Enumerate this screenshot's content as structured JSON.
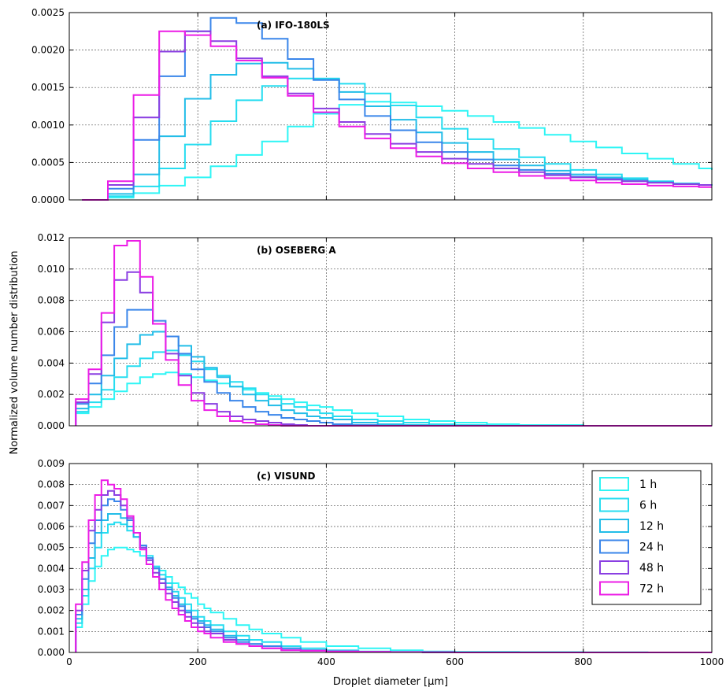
{
  "chart_data": [
    {
      "type": "line",
      "title": "(a) IFO-180LS",
      "xlim": [
        0,
        1000
      ],
      "ylim": [
        0,
        0.0025
      ],
      "xticks": [
        0,
        200,
        400,
        600,
        800,
        1000
      ],
      "xtick_labels": [
        "",
        "",
        "",
        "",
        "",
        ""
      ],
      "yticks": [
        0,
        0.0005,
        0.001,
        0.0015,
        0.002,
        0.0025
      ],
      "ytick_labels": [
        "0.0000",
        "0.0005",
        "0.0010",
        "0.0015",
        "0.0020",
        "0.0025"
      ],
      "grid": true,
      "x": [
        20,
        60,
        100,
        140,
        180,
        220,
        260,
        300,
        340,
        380,
        420,
        460,
        500,
        540,
        580,
        620,
        660,
        700,
        740,
        780,
        820,
        860,
        900,
        940,
        980,
        1000
      ],
      "series": [
        {
          "name": "1 h",
          "values": [
            0,
            3e-05,
            9e-05,
            0.00019,
            0.0003,
            0.00045,
            0.0006,
            0.00078,
            0.00098,
            0.00115,
            0.00127,
            0.00131,
            0.0013,
            0.00125,
            0.00119,
            0.00112,
            0.00104,
            0.00096,
            0.00087,
            0.00078,
            0.0007,
            0.00062,
            0.00055,
            0.00048,
            0.00042,
            0.0004
          ]
        },
        {
          "name": "6 h",
          "values": [
            0,
            5e-05,
            0.00018,
            0.00042,
            0.00074,
            0.00105,
            0.00133,
            0.00152,
            0.00162,
            0.00162,
            0.00155,
            0.00142,
            0.00126,
            0.0011,
            0.00095,
            0.00081,
            0.00068,
            0.00057,
            0.00048,
            0.0004,
            0.00034,
            0.00029,
            0.00025,
            0.00022,
            0.0002,
            0.00019
          ]
        },
        {
          "name": "12 h",
          "values": [
            0,
            8e-05,
            0.00034,
            0.00085,
            0.00135,
            0.00167,
            0.00182,
            0.00183,
            0.00175,
            0.00161,
            0.00144,
            0.00125,
            0.00107,
            0.0009,
            0.00076,
            0.00064,
            0.00054,
            0.00046,
            0.00039,
            0.00034,
            0.0003,
            0.00027,
            0.00024,
            0.00022,
            0.0002,
            0.0002
          ]
        },
        {
          "name": "24 h",
          "values": [
            0,
            0.00015,
            0.0008,
            0.00165,
            0.00225,
            0.00243,
            0.00236,
            0.00215,
            0.00188,
            0.0016,
            0.00134,
            0.00112,
            0.00093,
            0.00077,
            0.00064,
            0.00054,
            0.00046,
            0.0004,
            0.00035,
            0.00031,
            0.00028,
            0.00025,
            0.00023,
            0.00021,
            0.0002,
            0.0002
          ]
        },
        {
          "name": "48 h",
          "values": [
            0,
            0.0002,
            0.0011,
            0.00198,
            0.00225,
            0.00212,
            0.00189,
            0.00165,
            0.00142,
            0.00122,
            0.00104,
            0.00088,
            0.00075,
            0.00064,
            0.00055,
            0.00048,
            0.00042,
            0.00037,
            0.00033,
            0.0003,
            0.00027,
            0.00025,
            0.00023,
            0.00021,
            0.0002,
            0.0002
          ]
        },
        {
          "name": "72 h",
          "values": [
            0,
            0.00025,
            0.0014,
            0.00225,
            0.0022,
            0.00205,
            0.00186,
            0.00163,
            0.00139,
            0.00117,
            0.00098,
            0.00082,
            0.00069,
            0.00058,
            0.00049,
            0.00042,
            0.00037,
            0.00032,
            0.00029,
            0.00026,
            0.00023,
            0.00021,
            0.00019,
            0.00018,
            0.00017,
            0.00017
          ]
        }
      ]
    },
    {
      "type": "line",
      "title": "(b) OSEBERG A",
      "xlim": [
        0,
        1000
      ],
      "ylim": [
        0,
        0.012
      ],
      "xticks": [
        0,
        200,
        400,
        600,
        800,
        1000
      ],
      "xtick_labels": [
        "",
        "",
        "",
        "",
        "",
        ""
      ],
      "yticks": [
        0,
        0.002,
        0.004,
        0.006,
        0.008,
        0.01,
        0.012
      ],
      "ytick_labels": [
        "0.000",
        "0.002",
        "0.004",
        "0.006",
        "0.008",
        "0.010",
        "0.012"
      ],
      "grid": true,
      "x": [
        10,
        30,
        50,
        70,
        90,
        110,
        130,
        150,
        170,
        190,
        210,
        230,
        250,
        270,
        290,
        310,
        330,
        350,
        370,
        390,
        410,
        440,
        480,
        520,
        560,
        600,
        650,
        700,
        800,
        900,
        1000
      ],
      "series": [
        {
          "name": "1 h",
          "values": [
            0.0008,
            0.0012,
            0.0017,
            0.0022,
            0.0027,
            0.0031,
            0.0033,
            0.0034,
            0.0033,
            0.0031,
            0.0029,
            0.0027,
            0.0025,
            0.0023,
            0.0021,
            0.0019,
            0.0017,
            0.0015,
            0.0013,
            0.0012,
            0.001,
            0.0008,
            0.0006,
            0.0004,
            0.0003,
            0.0002,
            0.0001,
            5e-05,
            0,
            0,
            0
          ]
        },
        {
          "name": "6 h",
          "values": [
            0.0009,
            0.0015,
            0.0023,
            0.0031,
            0.0038,
            0.0043,
            0.0047,
            0.0048,
            0.0045,
            0.0041,
            0.0036,
            0.0032,
            0.0028,
            0.0024,
            0.002,
            0.0017,
            0.0014,
            0.0012,
            0.001,
            0.0008,
            0.0006,
            0.0004,
            0.0003,
            0.0002,
            0.0001,
            5e-05,
            0,
            0,
            0,
            0,
            0
          ]
        },
        {
          "name": "12 h",
          "values": [
            0.0011,
            0.002,
            0.0032,
            0.0043,
            0.0052,
            0.0058,
            0.006,
            0.0057,
            0.0051,
            0.0044,
            0.0037,
            0.0031,
            0.0025,
            0.002,
            0.0016,
            0.0013,
            0.001,
            0.0008,
            0.0006,
            0.0005,
            0.0004,
            0.0002,
            0.0001,
            5e-05,
            0,
            0,
            0,
            0,
            0,
            0,
            0
          ]
        },
        {
          "name": "24 h",
          "values": [
            0.0014,
            0.0027,
            0.0045,
            0.0063,
            0.0074,
            0.0074,
            0.0067,
            0.0057,
            0.0046,
            0.0036,
            0.0028,
            0.0021,
            0.0016,
            0.0012,
            0.0009,
            0.0007,
            0.0005,
            0.0004,
            0.0003,
            0.0002,
            0.0001,
            5e-05,
            0,
            0,
            0,
            0,
            0,
            0,
            0,
            0,
            0
          ]
        },
        {
          "name": "48 h",
          "values": [
            0.0015,
            0.0033,
            0.0066,
            0.0093,
            0.0098,
            0.0085,
            0.0065,
            0.0046,
            0.0032,
            0.0021,
            0.0014,
            0.0009,
            0.0006,
            0.0004,
            0.0003,
            0.0002,
            0.0001,
            5e-05,
            0,
            0,
            0,
            0,
            0,
            0,
            0,
            0,
            0,
            0,
            0,
            0,
            0
          ]
        },
        {
          "name": "72 h",
          "values": [
            0.0017,
            0.0036,
            0.0072,
            0.0115,
            0.0118,
            0.0095,
            0.0065,
            0.0042,
            0.0026,
            0.0016,
            0.001,
            0.0006,
            0.0003,
            0.0002,
            0.0001,
            5e-05,
            0,
            0,
            0,
            0,
            0,
            0,
            0,
            0,
            0,
            0,
            0,
            0,
            0,
            0,
            0
          ]
        }
      ]
    },
    {
      "type": "line",
      "title": "(c) VISUND",
      "xlim": [
        0,
        1000
      ],
      "ylim": [
        0,
        0.009
      ],
      "xticks": [
        0,
        200,
        400,
        600,
        800,
        1000
      ],
      "xtick_labels": [
        "0",
        "200",
        "400",
        "600",
        "800",
        "1000"
      ],
      "yticks": [
        0,
        0.001,
        0.002,
        0.003,
        0.004,
        0.005,
        0.006,
        0.007,
        0.008,
        0.009
      ],
      "ytick_labels": [
        "0.000",
        "0.001",
        "0.002",
        "0.003",
        "0.004",
        "0.005",
        "0.006",
        "0.007",
        "0.008",
        "0.009"
      ],
      "grid": true,
      "xlabel": "Droplet diameter [μm]",
      "ylabel": "Normalized volume number distribution",
      "legend_position": "right",
      "x": [
        10,
        20,
        30,
        40,
        50,
        60,
        70,
        80,
        90,
        100,
        110,
        120,
        130,
        140,
        150,
        160,
        170,
        180,
        190,
        200,
        210,
        220,
        240,
        260,
        280,
        300,
        330,
        360,
        400,
        450,
        500,
        550,
        600,
        700,
        800,
        900,
        1000
      ],
      "series": [
        {
          "name": "1 h",
          "values": [
            0.0012,
            0.0023,
            0.0034,
            0.0041,
            0.0046,
            0.0049,
            0.005,
            0.005,
            0.0049,
            0.0048,
            0.0046,
            0.0044,
            0.0041,
            0.0039,
            0.0036,
            0.0033,
            0.0031,
            0.0028,
            0.0026,
            0.0023,
            0.0021,
            0.0019,
            0.0016,
            0.0013,
            0.0011,
            0.0009,
            0.0007,
            0.0005,
            0.0003,
            0.0002,
            0.0001,
            5e-05,
            3e-05,
            2e-05,
            1e-05,
            0,
            0
          ]
        },
        {
          "name": "6 h",
          "values": [
            0.0014,
            0.0027,
            0.004,
            0.005,
            0.0057,
            0.0061,
            0.0062,
            0.0061,
            0.0058,
            0.0055,
            0.005,
            0.0046,
            0.0041,
            0.0037,
            0.0033,
            0.0029,
            0.0026,
            0.0023,
            0.002,
            0.0017,
            0.0015,
            0.0013,
            0.001,
            0.0008,
            0.0006,
            0.0005,
            0.0003,
            0.0002,
            0.0001,
            5e-05,
            3e-05,
            2e-05,
            1e-05,
            0,
            0,
            0,
            0
          ]
        },
        {
          "name": "12 h",
          "values": [
            0.0016,
            0.003,
            0.0045,
            0.0057,
            0.0063,
            0.0066,
            0.0066,
            0.0064,
            0.006,
            0.0055,
            0.005,
            0.0045,
            0.004,
            0.0035,
            0.0031,
            0.0027,
            0.0023,
            0.002,
            0.0017,
            0.0015,
            0.0013,
            0.0011,
            0.0008,
            0.0006,
            0.0004,
            0.0003,
            0.0002,
            0.0001,
            5e-05,
            3e-05,
            2e-05,
            1e-05,
            0,
            0,
            0,
            0,
            0
          ]
        },
        {
          "name": "24 h",
          "values": [
            0.0018,
            0.0035,
            0.0052,
            0.0063,
            0.007,
            0.0073,
            0.0072,
            0.0068,
            0.0063,
            0.0057,
            0.0051,
            0.0045,
            0.004,
            0.0035,
            0.003,
            0.0026,
            0.0022,
            0.0019,
            0.0016,
            0.0014,
            0.0012,
            0.001,
            0.0007,
            0.0005,
            0.0004,
            0.0003,
            0.0002,
            0.0001,
            5e-05,
            3e-05,
            2e-05,
            1e-05,
            0,
            0,
            0,
            0,
            0
          ]
        },
        {
          "name": "48 h",
          "values": [
            0.002,
            0.0039,
            0.0058,
            0.0068,
            0.0075,
            0.0077,
            0.0075,
            0.007,
            0.0064,
            0.0057,
            0.005,
            0.0044,
            0.0038,
            0.0033,
            0.0028,
            0.0024,
            0.002,
            0.0017,
            0.0014,
            0.0012,
            0.001,
            0.0009,
            0.0006,
            0.0004,
            0.0003,
            0.0002,
            0.0001,
            8e-05,
            5e-05,
            3e-05,
            2e-05,
            1e-05,
            0,
            0,
            0,
            0,
            0
          ]
        },
        {
          "name": "72 h",
          "values": [
            0.0023,
            0.0043,
            0.0063,
            0.0075,
            0.0082,
            0.008,
            0.0078,
            0.0073,
            0.0065,
            0.0057,
            0.0049,
            0.0042,
            0.0036,
            0.003,
            0.0025,
            0.0021,
            0.0018,
            0.0015,
            0.0012,
            0.001,
            0.0009,
            0.0007,
            0.0005,
            0.0004,
            0.0003,
            0.0002,
            0.0001,
            8e-05,
            5e-05,
            3e-05,
            2e-05,
            1e-05,
            0,
            0,
            0,
            0,
            0
          ]
        }
      ]
    }
  ],
  "colors": {
    "1 h": "#2ef5f5",
    "6 h": "#26ddf0",
    "12 h": "#22bde8",
    "24 h": "#3a86ea",
    "48 h": "#8a3fe2",
    "72 h": "#ec1ce6"
  }
}
